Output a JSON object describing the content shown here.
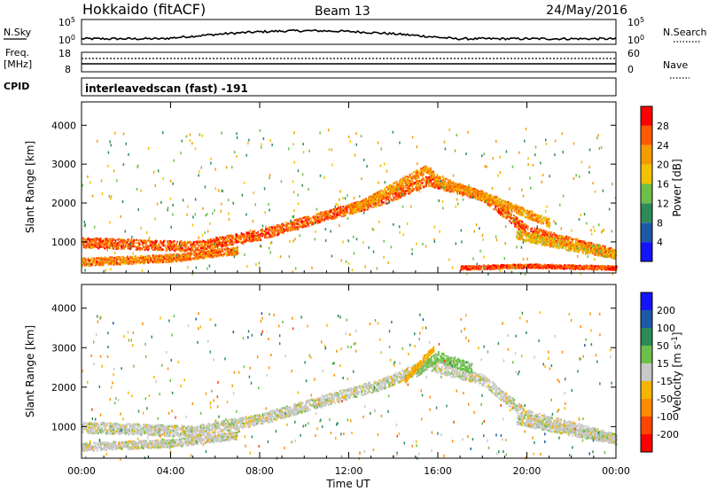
{
  "header": {
    "title": "Hokkaido (fitACF)",
    "beam": "Beam 13",
    "date": "24/May/2016"
  },
  "side_labels": {
    "nsky": "N.Sky",
    "nsearch": "N.Search",
    "freq": "Freq.",
    "freq_unit": "[MHz]",
    "cpid": "CPID",
    "nave": "Nave"
  },
  "aux_ticks": {
    "nsky_left": [
      "10^5",
      "10^0"
    ],
    "nsky_right": [
      "10^5",
      "10^0"
    ],
    "freq_left": [
      "18",
      "8"
    ],
    "freq_right": [
      "60",
      "0"
    ]
  },
  "cpid_text": "interleavedscan (fast) -191",
  "colors": {
    "power": [
      "#1414ff",
      "#1c5aa8",
      "#2e8b57",
      "#6cc04a",
      "#f2c200",
      "#f39c00",
      "#ff5a00",
      "#ff0000"
    ],
    "velocity": [
      "#1414ff",
      "#1c5aa8",
      "#2e8b57",
      "#6cc04a",
      "#c8c8c8",
      "#f4b400",
      "#ff8c00",
      "#ff4500",
      "#ff0000"
    ]
  },
  "chart_data": [
    {
      "type": "heatmap",
      "panel": "power",
      "xlabel": "",
      "ylabel": "Slant Range [km]",
      "xlim": [
        "00:00",
        "24:00"
      ],
      "ylim": [
        200,
        4600
      ],
      "yticks": [
        "1000",
        "2000",
        "3000",
        "4000"
      ],
      "colorbar": {
        "label": "Power [dB]",
        "ticks": [
          "4",
          "8",
          "12",
          "16",
          "20",
          "24",
          "28"
        ],
        "range": [
          0,
          32
        ]
      },
      "bands": [
        {
          "t": [
            0,
            5,
            8,
            11,
            13.5,
            15.5,
            18,
            20,
            24
          ],
          "r": [
            1000,
            900,
            1200,
            1700,
            2100,
            2600,
            2200,
            1300,
            700
          ],
          "w": 260,
          "level": 26
        },
        {
          "t": [
            0,
            4,
            7
          ],
          "r": [
            500,
            600,
            800
          ],
          "w": 200,
          "level": 24
        },
        {
          "t": [
            12,
            15.5,
            16,
            18.5,
            21
          ],
          "r": [
            1800,
            2900,
            2600,
            2100,
            1500
          ],
          "w": 220,
          "level": 22
        },
        {
          "t": [
            19.5,
            22,
            24
          ],
          "r": [
            1200,
            900,
            700
          ],
          "w": 240,
          "level": 20
        },
        {
          "t": [
            17,
            20,
            24
          ],
          "r": [
            350,
            400,
            350
          ],
          "w": 100,
          "level": 27
        }
      ]
    },
    {
      "type": "heatmap",
      "panel": "velocity",
      "xlabel": "Time UT",
      "ylabel": "Slant Range [km]",
      "xlim": [
        "00:00",
        "24:00"
      ],
      "ylim": [
        200,
        4600
      ],
      "xticks": [
        "00:00",
        "04:00",
        "08:00",
        "12:00",
        "16:00",
        "20:00",
        "00:00"
      ],
      "yticks": [
        "1000",
        "2000",
        "3000",
        "4000"
      ],
      "colorbar": {
        "label": "Velocity [m s-1]",
        "ticks": [
          "200",
          "100",
          "50",
          "15",
          "-15",
          "-50",
          "-100",
          "-200"
        ],
        "range": [
          -250,
          250
        ]
      },
      "bands": [
        {
          "t": [
            0,
            5,
            8,
            11,
            13.5,
            15.5,
            18,
            20,
            24
          ],
          "r": [
            1000,
            900,
            1200,
            1700,
            2100,
            2600,
            2200,
            1300,
            700
          ],
          "w": 280,
          "level": 0
        },
        {
          "t": [
            0,
            4,
            7
          ],
          "r": [
            500,
            600,
            800
          ],
          "w": 200,
          "level": 0
        },
        {
          "t": [
            15,
            16,
            17.5
          ],
          "r": [
            2400,
            2800,
            2500
          ],
          "w": 250,
          "level": 30
        },
        {
          "t": [
            14.5,
            15.8
          ],
          "r": [
            2200,
            3000
          ],
          "w": 150,
          "level": -40
        },
        {
          "t": [
            19.5,
            22,
            24
          ],
          "r": [
            1200,
            900,
            700
          ],
          "w": 240,
          "level": 0
        }
      ]
    }
  ]
}
